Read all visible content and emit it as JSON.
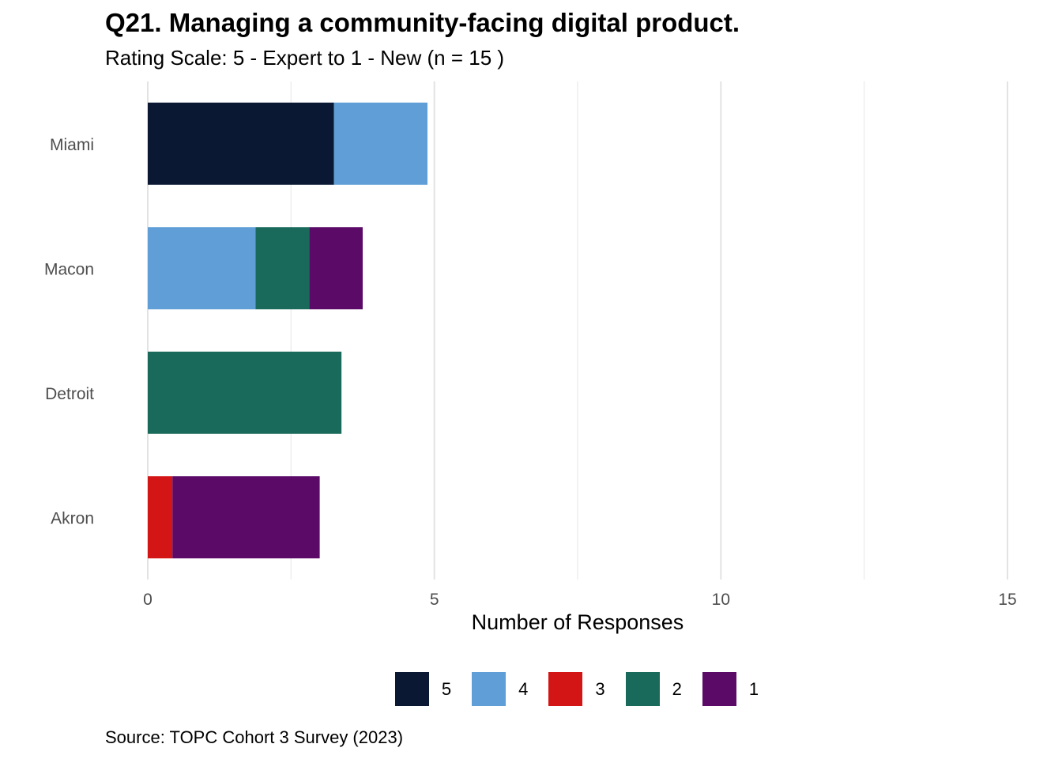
{
  "chart_data": {
    "type": "bar",
    "orientation": "horizontal",
    "stacked": true,
    "title": "Q21. Managing a community-facing digital product.",
    "subtitle": "Rating Scale: 5 - Expert to 1 - New (n = 15 )",
    "xlabel": "Number of Responses",
    "ylabel": "",
    "caption": "Source: TOPC Cohort 3 Survey (2023)",
    "categories": [
      "Miami",
      "Macon",
      "Detroit",
      "Akron"
    ],
    "xlim": [
      0,
      15
    ],
    "x_ticks": [
      "0",
      "5",
      "10",
      "15"
    ],
    "grid": true,
    "legend_position": "bottom",
    "series": [
      {
        "name": "5",
        "color": "#0a1833",
        "values": [
          3.25,
          0,
          0,
          0
        ]
      },
      {
        "name": "4",
        "color": "#5f9ed6",
        "values": [
          1.63,
          1.88,
          0,
          0
        ]
      },
      {
        "name": "3",
        "color": "#d31515",
        "values": [
          0,
          0,
          0,
          0.43
        ]
      },
      {
        "name": "2",
        "color": "#1a6a5c",
        "values": [
          0,
          0.94,
          3.38,
          0
        ]
      },
      {
        "name": "1",
        "color": "#5c0a68",
        "values": [
          0,
          0.93,
          0,
          2.57
        ]
      }
    ]
  }
}
